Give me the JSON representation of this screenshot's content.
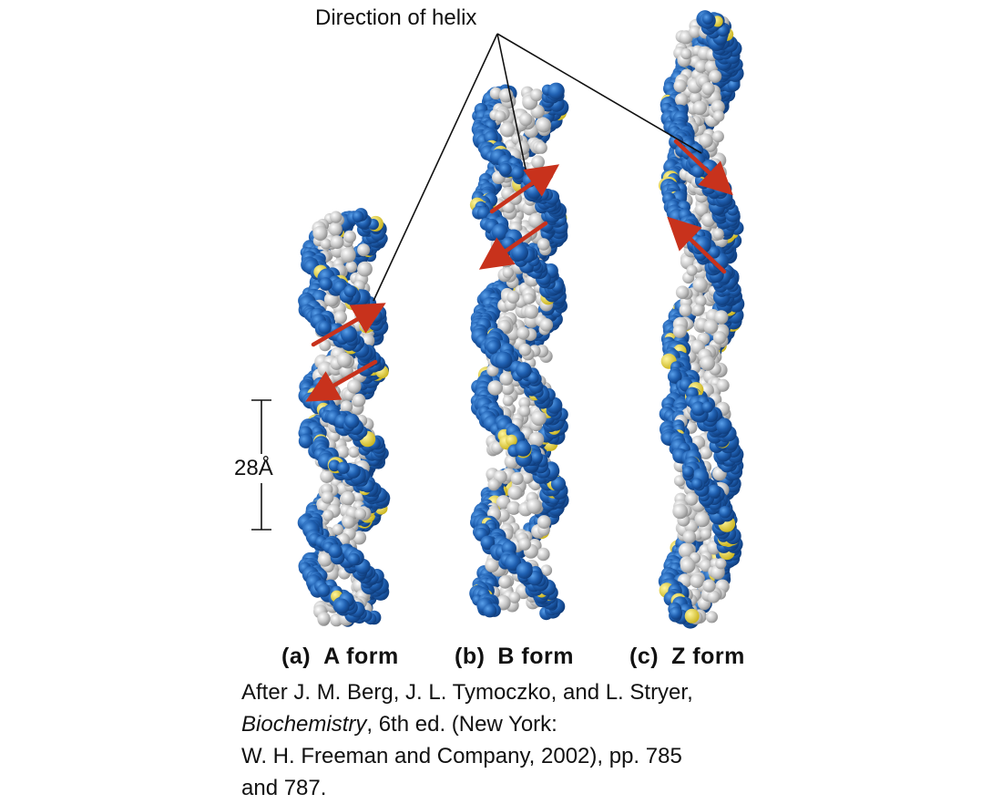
{
  "figure": {
    "pointer_label": "Direction of helix",
    "scale_label": "28Å",
    "colors": {
      "backbone_blue": "#1f5fb0",
      "backbone_blue_light": "#3f86d6",
      "base_gray": "#bdbdbd",
      "base_gray_light": "#e6e6e6",
      "phosphorus_yellow": "#e2cf2b",
      "arrow_red": "#c8321c"
    },
    "panels": [
      {
        "tag": "(a)",
        "name": "A form"
      },
      {
        "tag": "(b)",
        "name": "B form"
      },
      {
        "tag": "(c)",
        "name": "Z form"
      }
    ]
  },
  "citation": {
    "line1": "After J. M. Berg, J. L. Tymoczko, and L. Stryer,",
    "book_title": "Biochemistry",
    "line2_rest": ", 6th ed. (New York:",
    "line3": "W. H. Freeman and Company, 2002), pp. 785",
    "line4": "and 787."
  }
}
